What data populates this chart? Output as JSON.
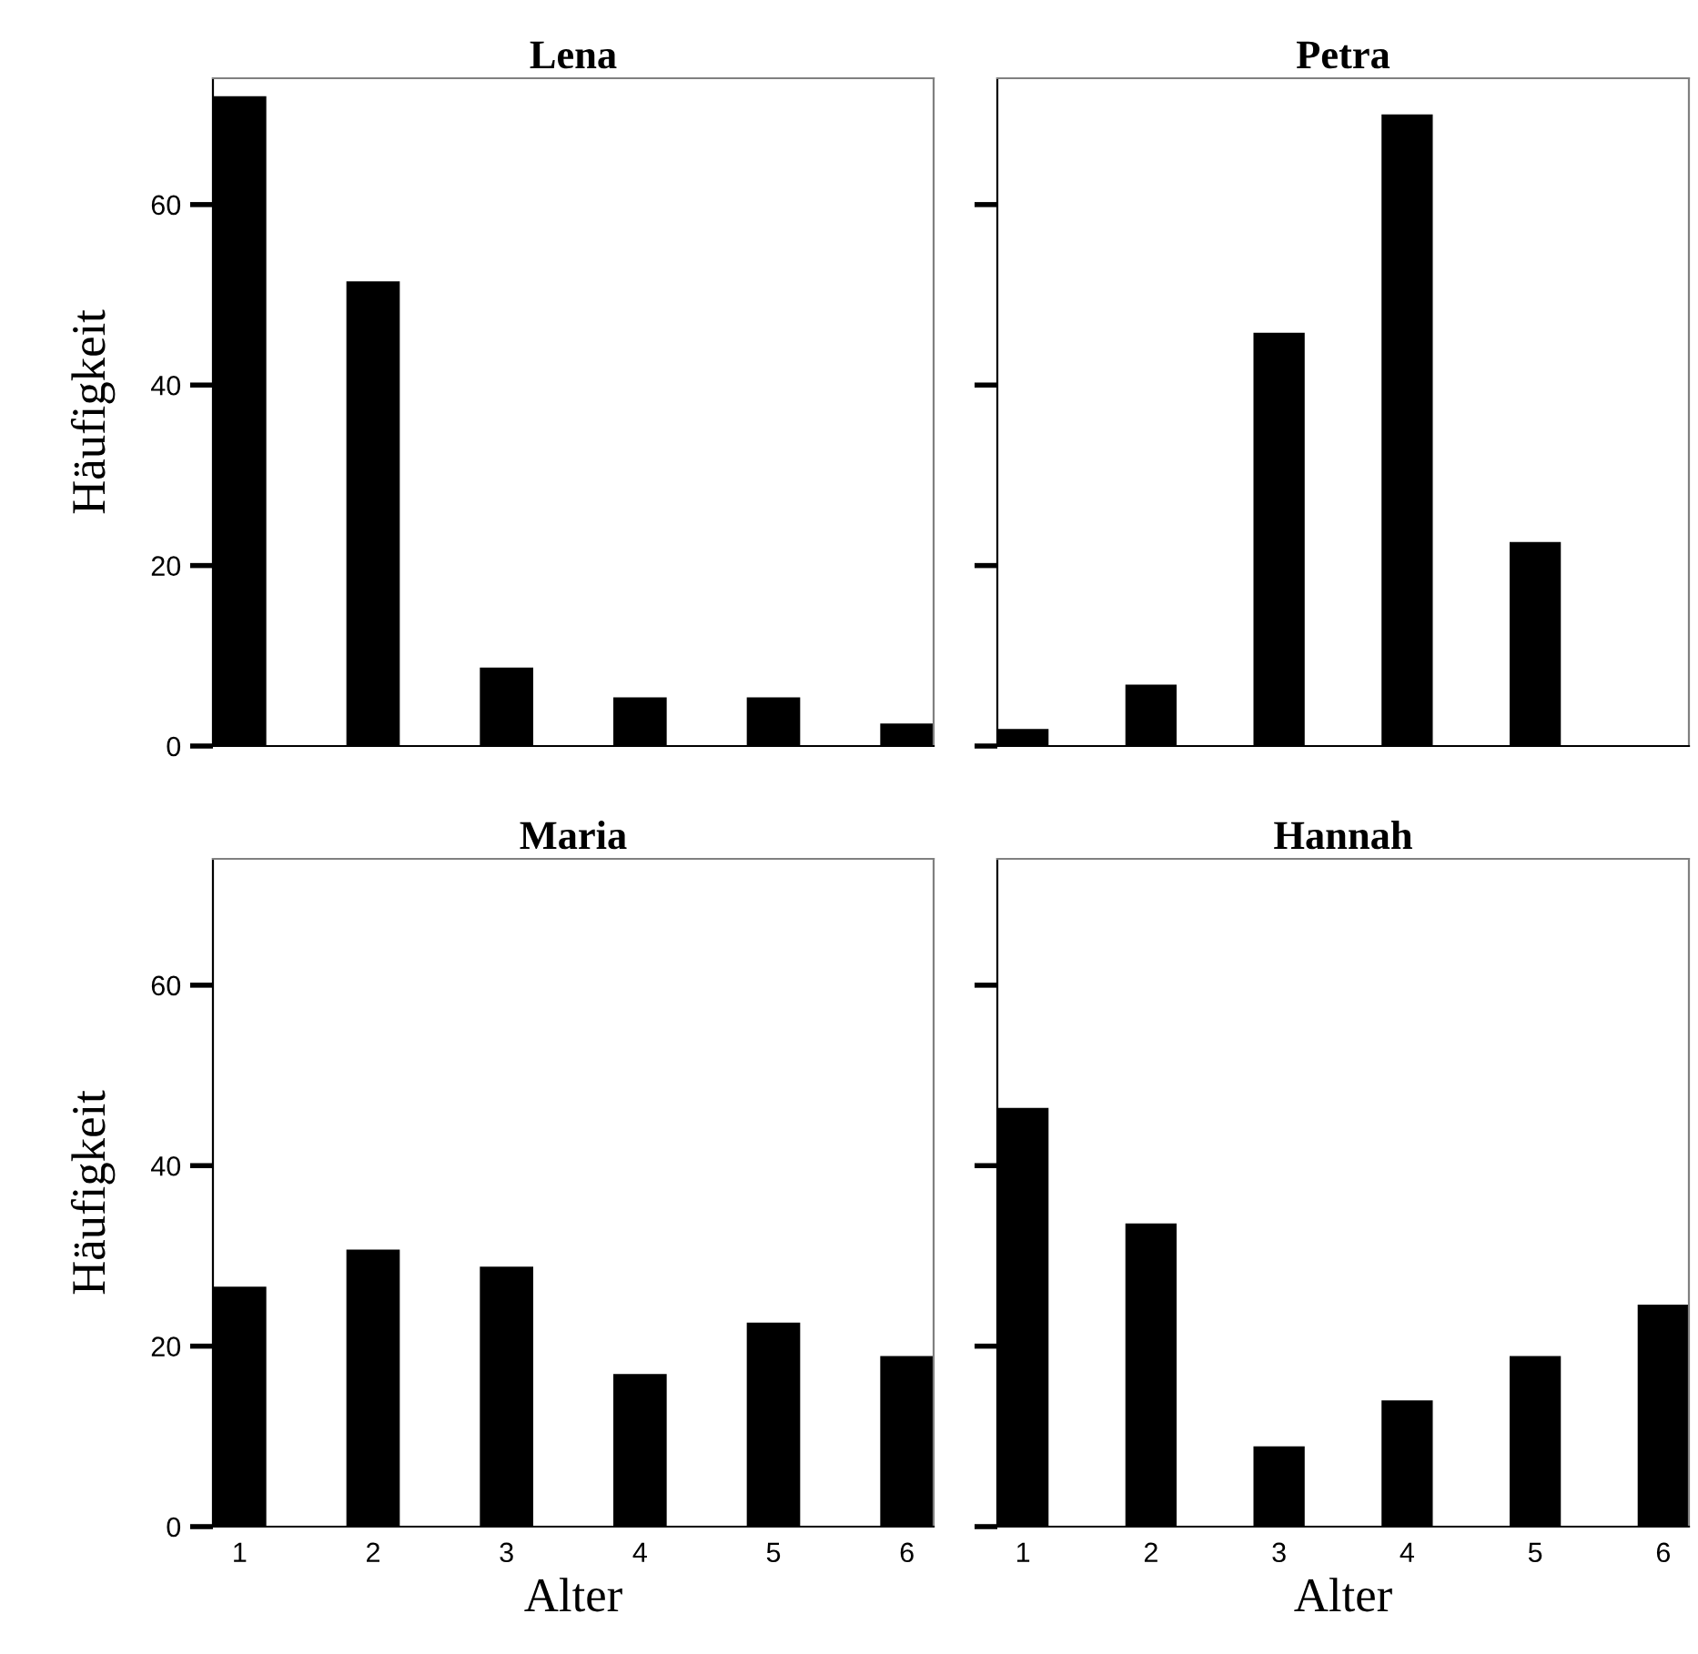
{
  "chart_data": [
    {
      "type": "bar",
      "title": "Lena",
      "ylabel": "Häufigkeit",
      "categories": [
        "1",
        "2",
        "3",
        "4",
        "5",
        "6"
      ],
      "values": [
        72,
        51.5,
        8.7,
        5.4,
        5.4,
        2.5
      ],
      "color": "#000000",
      "ylim": [
        0,
        74
      ],
      "yticks": [
        0,
        20,
        40,
        60
      ],
      "tick_labels": "y",
      "grid": false,
      "legend": false
    },
    {
      "type": "bar",
      "title": "Petra",
      "categories": [
        "1",
        "2",
        "3",
        "4",
        "5",
        "6"
      ],
      "values": [
        1.9,
        6.8,
        45.8,
        70,
        22.6,
        0
      ],
      "color": "#000000",
      "ylim": [
        0,
        74
      ],
      "yticks": [
        0,
        20,
        40,
        60
      ],
      "tick_labels": false,
      "grid": false,
      "legend": false
    },
    {
      "type": "bar",
      "title": "Maria",
      "ylabel": "Häufigkeit",
      "xlabel": "Alter",
      "categories": [
        "1",
        "2",
        "3",
        "4",
        "5",
        "6"
      ],
      "values": [
        26.6,
        30.7,
        28.8,
        16.9,
        22.6,
        18.9
      ],
      "color": "#000000",
      "ylim": [
        0,
        74
      ],
      "yticks": [
        0,
        20,
        40,
        60
      ],
      "grid": false,
      "legend": false
    },
    {
      "type": "bar",
      "title": "Hannah",
      "xlabel": "Alter",
      "categories": [
        "1",
        "2",
        "3",
        "4",
        "5",
        "6"
      ],
      "values": [
        46.4,
        33.6,
        8.9,
        14.0,
        18.9,
        24.6
      ],
      "color": "#000000",
      "ylim": [
        0,
        74
      ],
      "yticks": [
        0,
        20,
        40,
        60
      ],
      "tick_labels": "x",
      "grid": false,
      "legend": false
    }
  ]
}
